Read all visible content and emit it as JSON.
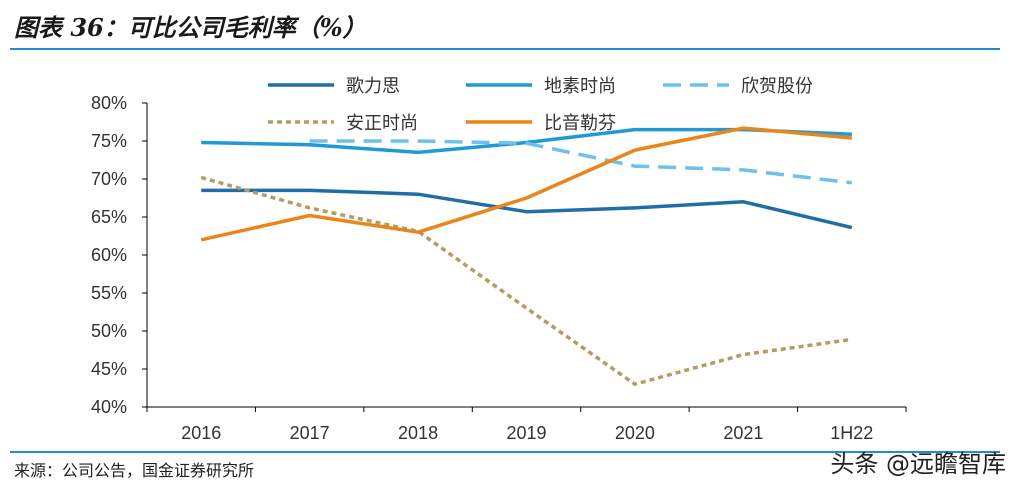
{
  "header": {
    "title": "图表 36：可比公司毛利率（%）"
  },
  "footer": {
    "source": "来源：公司公告，国金证券研究所",
    "watermark": "头条 @远瞻智库"
  },
  "chart_data": {
    "type": "line",
    "title": "图表 36：可比公司毛利率（%）",
    "categories": [
      "2016",
      "2017",
      "2018",
      "2019",
      "2020",
      "2021",
      "1H22"
    ],
    "y_ticks": [
      "80%",
      "75%",
      "70%",
      "65%",
      "60%",
      "55%",
      "50%",
      "45%",
      "40%"
    ],
    "ylim": [
      40,
      80
    ],
    "legend_position": "top",
    "series": [
      {
        "name": "歌力思",
        "color": "#1f6ea8",
        "dash": "solid",
        "values": [
          68.5,
          68.5,
          68.0,
          65.7,
          66.2,
          67.0,
          63.6
        ]
      },
      {
        "name": "地素时尚",
        "color": "#1f9ad6",
        "dash": "solid",
        "values": [
          74.8,
          74.5,
          73.5,
          74.8,
          76.5,
          76.5,
          75.9
        ]
      },
      {
        "name": "欣贺股份",
        "color": "#6fc0ea",
        "dash": "dashed",
        "values": [
          null,
          75.0,
          75.0,
          74.7,
          71.7,
          71.2,
          69.5
        ]
      },
      {
        "name": "安正时尚",
        "color": "#b59d62",
        "dash": "dotted",
        "values": [
          70.2,
          66.2,
          63.1,
          53.0,
          43.0,
          46.9,
          48.9
        ]
      },
      {
        "name": "比音勒芬",
        "color": "#e8861a",
        "dash": "solid",
        "values": [
          62.0,
          65.2,
          63.0,
          67.5,
          73.8,
          76.7,
          75.4
        ]
      }
    ]
  }
}
